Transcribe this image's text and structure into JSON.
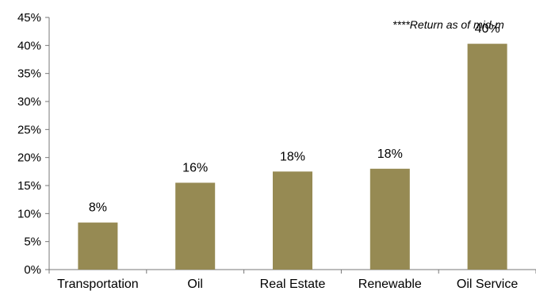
{
  "chart_data": {
    "type": "bar",
    "note": "****Return as of mid-m",
    "categories": [
      "Transportation",
      "Oil",
      "Real Estate",
      "Renewable",
      "Oil Service"
    ],
    "values": [
      8.4,
      15.5,
      17.5,
      18.0,
      40.3
    ],
    "data_labels": [
      "8%",
      "16%",
      "18%",
      "18%",
      "40%"
    ],
    "ylim": [
      0,
      45
    ],
    "yticks": [
      0,
      5,
      10,
      15,
      20,
      25,
      30,
      35,
      40,
      45
    ],
    "ytick_labels": [
      "0%",
      "5%",
      "10%",
      "15%",
      "20%",
      "25%",
      "30%",
      "35%",
      "40%",
      "45%"
    ],
    "grid": false,
    "legend": "none",
    "bar_color": "#968a53",
    "title": "",
    "xlabel": "",
    "ylabel": ""
  }
}
